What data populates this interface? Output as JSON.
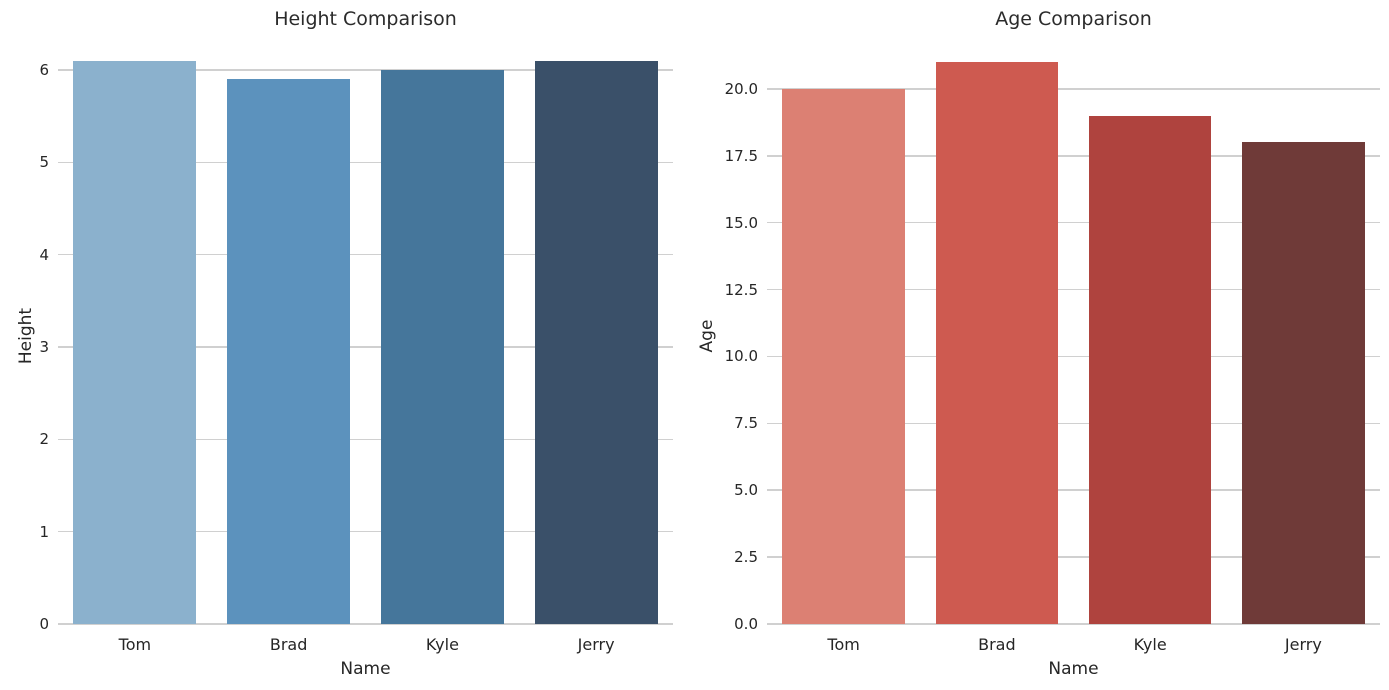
{
  "figure": {
    "background": "#ffffff",
    "text_color": "#262626",
    "grid_color": "#d0d0d0"
  },
  "chart_data": [
    {
      "type": "bar",
      "title": "Height Comparison",
      "xlabel": "Name",
      "ylabel": "Height",
      "categories": [
        "Tom",
        "Brad",
        "Kyle",
        "Jerry"
      ],
      "values": [
        6.1,
        5.9,
        6.0,
        6.1
      ],
      "bar_colors": [
        "#8bb1cd",
        "#5c92bd",
        "#45769b",
        "#3a5069"
      ],
      "yticks": [
        0,
        1,
        2,
        3,
        4,
        5,
        6
      ],
      "ytick_labels": [
        "0",
        "1",
        "2",
        "3",
        "4",
        "5",
        "6"
      ],
      "ylim": [
        0,
        6.25
      ],
      "grid": "horizontal",
      "legend": "none"
    },
    {
      "type": "bar",
      "title": "Age Comparison",
      "xlabel": "Name",
      "ylabel": "Age",
      "categories": [
        "Tom",
        "Brad",
        "Kyle",
        "Jerry"
      ],
      "values": [
        20,
        21,
        19,
        18
      ],
      "bar_colors": [
        "#dc8073",
        "#ce5a50",
        "#af433e",
        "#6f3a38"
      ],
      "yticks": [
        0,
        2.5,
        5,
        7.5,
        10,
        12.5,
        15,
        17.5,
        20
      ],
      "ytick_labels": [
        "0.0",
        "2.5",
        "5.0",
        "7.5",
        "10.0",
        "12.5",
        "15.0",
        "17.5",
        "20.0"
      ],
      "ylim": [
        0,
        21.57
      ],
      "grid": "horizontal",
      "legend": "none"
    }
  ]
}
